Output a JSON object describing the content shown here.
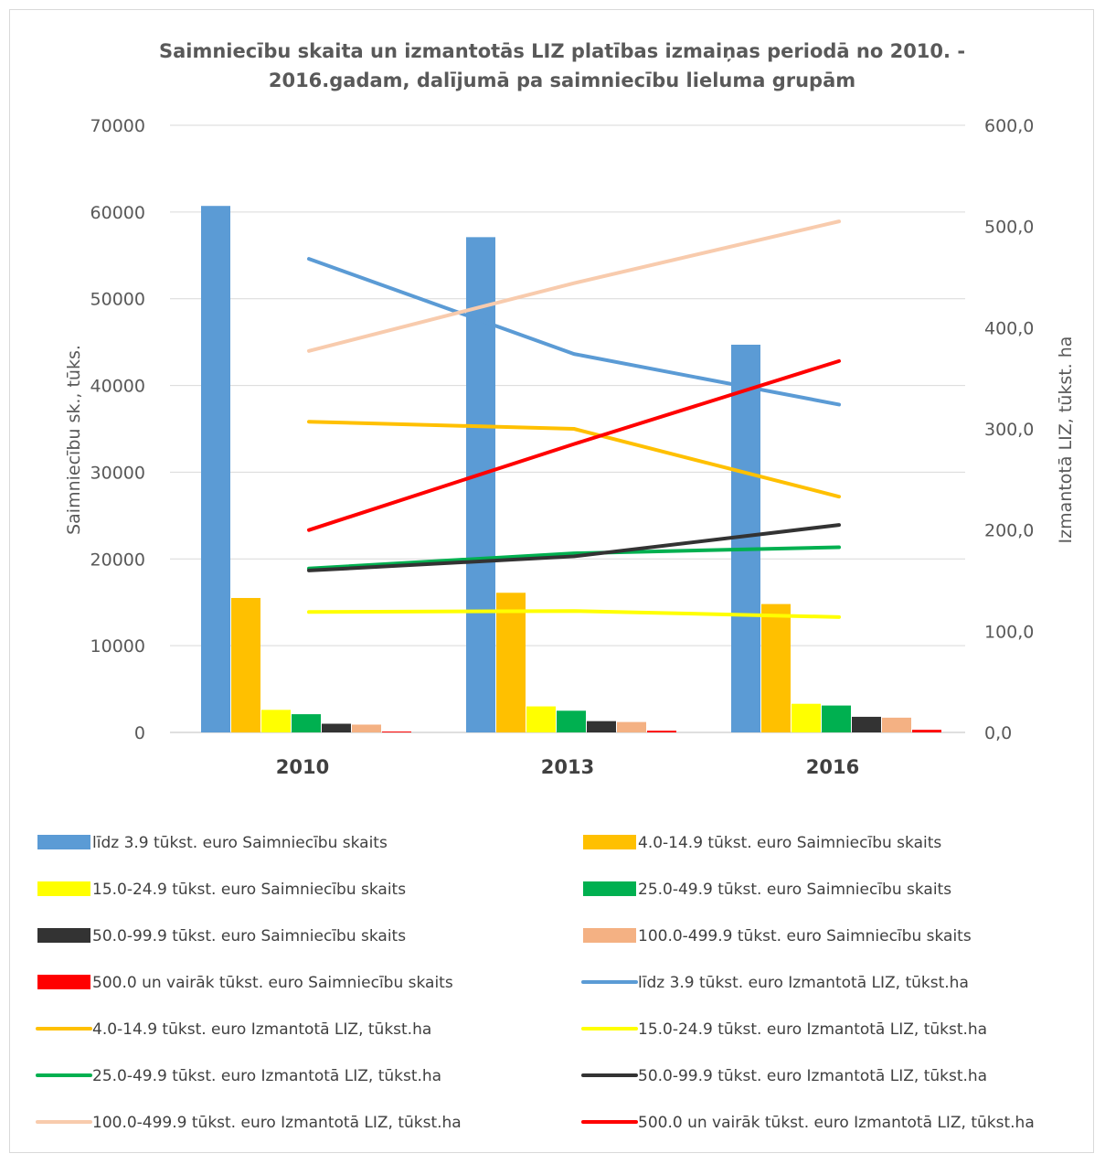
{
  "chart_data": {
    "type": "bar",
    "title": [
      "Saimniecību skaita un izmantotās LIZ platības izmaiņas periodā no 2010. -",
      "2016.gadam, dalījumā pa saimniecību lieluma grupām"
    ],
    "categories": [
      "2010",
      "2013",
      "2016"
    ],
    "ylabel": "Saimniecību sk., tūks.",
    "y2label": "Izmantotā LIZ, tūkst. ha",
    "ylim": [
      0,
      70000
    ],
    "y2lim": [
      0,
      600
    ],
    "yticks": [
      "0",
      "10000",
      "20000",
      "30000",
      "40000",
      "50000",
      "60000",
      "70000"
    ],
    "y2ticks": [
      "0,0",
      "100,0",
      "200,0",
      "300,0",
      "400,0",
      "500,0",
      "600,0"
    ],
    "grid": true,
    "legend_position": "bottom",
    "bar_series": [
      {
        "name": "līdz 3.9 tūkst. euro Saimniecību skaits",
        "color": "#5b9bd5",
        "values": [
          60700,
          57100,
          44700
        ]
      },
      {
        "name": "4.0-14.9 tūkst. euro Saimniecību skaits",
        "color": "#ffc000",
        "values": [
          15500,
          16100,
          14800
        ]
      },
      {
        "name": "15.0-24.9 tūkst. euro Saimniecību skaits",
        "color": "#ffff00",
        "values": [
          2600,
          3000,
          3300
        ]
      },
      {
        "name": "25.0-49.9 tūkst. euro Saimniecību skaits",
        "color": "#00b050",
        "values": [
          2100,
          2500,
          3100
        ]
      },
      {
        "name": "50.0-99.9 tūkst. euro Saimniecību skaits",
        "color": "#333333",
        "values": [
          1000,
          1300,
          1800
        ]
      },
      {
        "name": "100.0-499.9 tūkst. euro Saimniecību skaits",
        "color": "#f4b183",
        "values": [
          900,
          1200,
          1700
        ]
      },
      {
        "name": "500.0 un vairāk tūkst. euro Saimniecību skaits",
        "color": "#ff0000",
        "values": [
          100,
          200,
          300
        ]
      }
    ],
    "line_series": [
      {
        "name": "līdz 3.9 tūkst. euro Izmantotā LIZ, tūkst.ha",
        "color": "#5b9bd5",
        "values": [
          468,
          374,
          324
        ]
      },
      {
        "name": "4.0-14.9 tūkst. euro Izmantotā LIZ, tūkst.ha",
        "color": "#ffc000",
        "values": [
          307,
          300,
          233
        ]
      },
      {
        "name": "15.0-24.9 tūkst. euro Izmantotā LIZ, tūkst.ha",
        "color": "#ffff00",
        "values": [
          119,
          120,
          114
        ]
      },
      {
        "name": "25.0-49.9 tūkst. euro Izmantotā LIZ, tūkst.ha",
        "color": "#00b050",
        "values": [
          162,
          177,
          183
        ]
      },
      {
        "name": "50.0-99.9 tūkst. euro Izmantotā LIZ, tūkst.ha",
        "color": "#333333",
        "values": [
          160,
          174,
          205
        ]
      },
      {
        "name": "100.0-499.9 tūkst. euro Izmantotā LIZ, tūkst.ha",
        "color": "#f8cbad",
        "values": [
          377,
          444,
          505
        ]
      },
      {
        "name": "500.0 un vairāk tūkst. euro Izmantotā LIZ, tūkst.ha",
        "color": "#ff0000",
        "values": [
          200,
          285,
          367
        ]
      }
    ],
    "legend": [
      {
        "label": "līdz 3.9 tūkst. euro Saimniecību skaits",
        "kind": "bar",
        "color": "#5b9bd5"
      },
      {
        "label": "4.0-14.9 tūkst. euro Saimniecību skaits",
        "kind": "bar",
        "color": "#ffc000"
      },
      {
        "label": "15.0-24.9 tūkst. euro Saimniecību skaits",
        "kind": "bar",
        "color": "#ffff00"
      },
      {
        "label": "25.0-49.9 tūkst. euro Saimniecību skaits",
        "kind": "bar",
        "color": "#00b050"
      },
      {
        "label": "50.0-99.9 tūkst. euro Saimniecību skaits",
        "kind": "bar",
        "color": "#333333"
      },
      {
        "label": "100.0-499.9 tūkst. euro Saimniecību skaits",
        "kind": "bar",
        "color": "#f4b183"
      },
      {
        "label": "500.0 un vairāk tūkst. euro Saimniecību skaits",
        "kind": "bar",
        "color": "#ff0000"
      },
      {
        "label": "līdz 3.9 tūkst. euro Izmantotā LIZ, tūkst.ha",
        "kind": "line",
        "color": "#5b9bd5"
      },
      {
        "label": "4.0-14.9 tūkst. euro Izmantotā LIZ, tūkst.ha",
        "kind": "line",
        "color": "#ffc000"
      },
      {
        "label": "15.0-24.9 tūkst. euro Izmantotā LIZ, tūkst.ha",
        "kind": "line",
        "color": "#ffff00"
      },
      {
        "label": "25.0-49.9 tūkst. euro Izmantotā LIZ, tūkst.ha",
        "kind": "line",
        "color": "#00b050"
      },
      {
        "label": "50.0-99.9 tūkst. euro Izmantotā LIZ, tūkst.ha",
        "kind": "line",
        "color": "#333333"
      },
      {
        "label": "100.0-499.9 tūkst. euro Izmantotā LIZ, tūkst.ha",
        "kind": "line",
        "color": "#f8cbad"
      },
      {
        "label": "500.0 un vairāk tūkst. euro Izmantotā LIZ, tūkst.ha",
        "kind": "line",
        "color": "#ff0000"
      }
    ]
  }
}
